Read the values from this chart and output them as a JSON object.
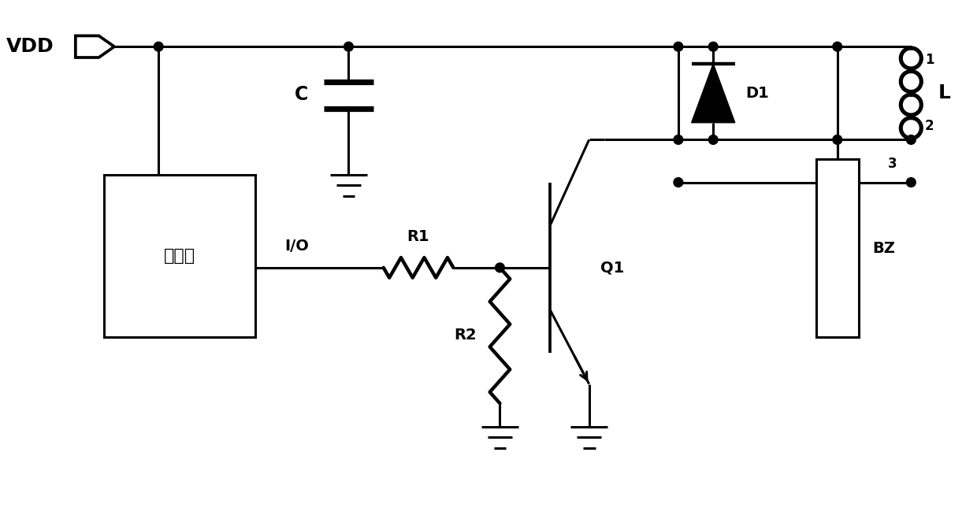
{
  "bg_color": "#ffffff",
  "line_color": "#000000",
  "lw": 2.2,
  "labels": {
    "VDD": "VDD",
    "C": "C",
    "L": "L",
    "R1": "R1",
    "R2": "R2",
    "Q1": "Q1",
    "D1": "D1",
    "BZ": "BZ",
    "MCU": "单片机",
    "IO": "I/O",
    "pin1": "1",
    "pin2": "2",
    "pin3": "3"
  },
  "figsize": [
    12.4,
    6.59
  ],
  "dpi": 100
}
